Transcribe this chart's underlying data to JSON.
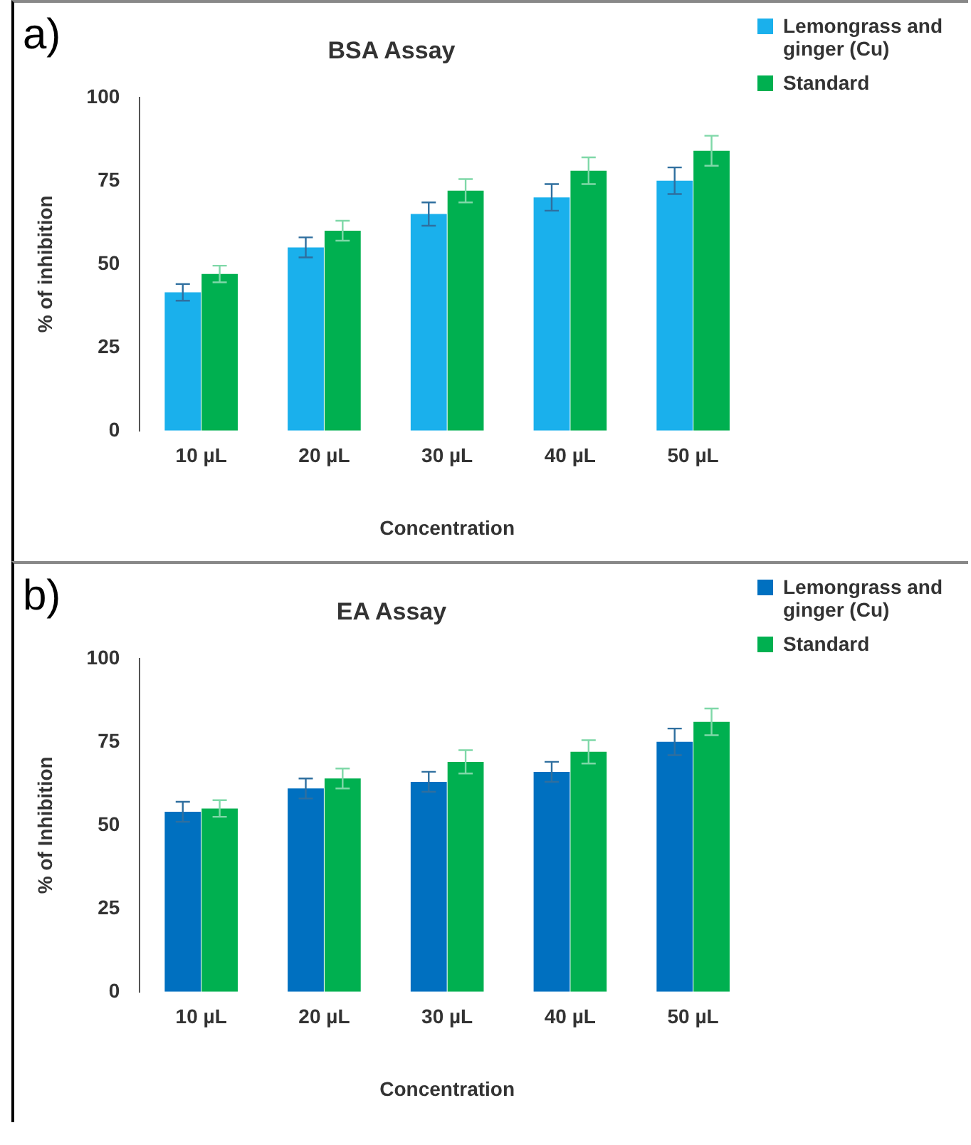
{
  "chart_data": [
    {
      "type": "bar",
      "title": "BSA Assay",
      "xlabel": "Concentration",
      "ylabel": "% of inhibition",
      "annotations": [
        "a)"
      ],
      "categories": [
        "10 µL",
        "20 µL",
        "30 µL",
        "40 µL",
        "50 µL"
      ],
      "series": [
        {
          "name": "Lemongrass and ginger (Cu)",
          "color": "#1ab0ec",
          "values": [
            41.5,
            55,
            65,
            70,
            75
          ],
          "errors": [
            2.5,
            3,
            3.5,
            4,
            4
          ]
        },
        {
          "name": "Standard",
          "color": "#00b050",
          "values": [
            47,
            60,
            72,
            78,
            84
          ],
          "errors": [
            2.5,
            3,
            3.5,
            4,
            4.5
          ]
        }
      ],
      "ylim": [
        0,
        100
      ],
      "yticks": [
        0,
        25,
        50,
        75,
        100
      ],
      "grid": false,
      "legend": "top right"
    },
    {
      "type": "bar",
      "title": "EA Assay",
      "xlabel": "Concentration",
      "ylabel": "% of Inhibition",
      "annotations": [
        "b)"
      ],
      "categories": [
        "10 µL",
        "20 µL",
        "30 µL",
        "40 µL",
        "50 µL"
      ],
      "series": [
        {
          "name": "Lemongrass and ginger (Cu)",
          "color": "#0070c0",
          "values": [
            54,
            61,
            63,
            66,
            75
          ],
          "errors": [
            3,
            3,
            3,
            3,
            4
          ]
        },
        {
          "name": "Standard",
          "color": "#00b050",
          "values": [
            55,
            64,
            69,
            72,
            81
          ],
          "errors": [
            2.5,
            3,
            3.5,
            3.5,
            4
          ]
        }
      ],
      "ylim": [
        0,
        100
      ],
      "yticks": [
        0,
        25,
        50,
        75,
        100
      ],
      "grid": false,
      "legend": "top right"
    }
  ]
}
